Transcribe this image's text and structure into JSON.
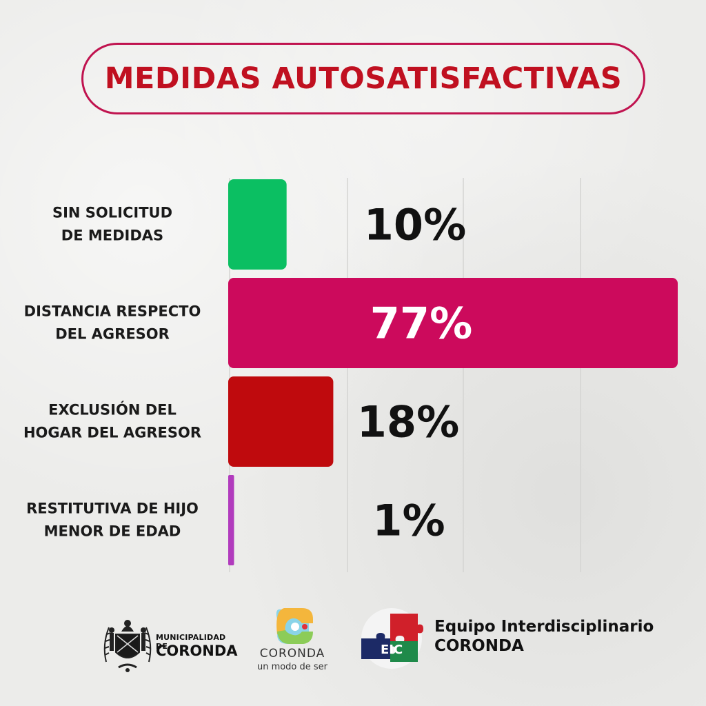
{
  "header": {
    "title": "MEDIDAS AUTOSATISFACTIVAS"
  },
  "chart_data": {
    "type": "bar",
    "orientation": "horizontal",
    "title": "MEDIDAS AUTOSATISFACTIVAS",
    "categories": [
      [
        "SIN SOLICITUD",
        "DE MEDIDAS"
      ],
      [
        "DISTANCIA RESPECTO",
        "DEL AGRESOR"
      ],
      [
        "EXCLUSIÓN DEL",
        "HOGAR DEL AGRESOR"
      ],
      [
        "RESTITUTIVA DE HIJO",
        "MENOR DE EDAD"
      ]
    ],
    "values": [
      10,
      77,
      18,
      1
    ],
    "value_labels": [
      "10%",
      "77%",
      "18%",
      "1%"
    ],
    "colors": [
      "#0bbf62",
      "#cc0a5c",
      "#bf0a0d",
      "#b13bbd"
    ],
    "label_colors": [
      "#111111",
      "#ffffff",
      "#111111",
      "#111111"
    ],
    "xlim": [
      0,
      77
    ],
    "grid": true,
    "legend": "none"
  },
  "footer": {
    "municipality_line1": "MUNICIPALIDAD DE",
    "municipality_line2": "CORONDA",
    "coronda_name": "CORONDA",
    "coronda_tagline": "un modo de ser",
    "eic_abbr": "EIC",
    "team_line1": "Equipo Interdisciplinario",
    "team_line2": "CORONDA"
  },
  "colors": {
    "title": "#c01020",
    "title_border": "#c0134f",
    "background": "#ececea"
  }
}
